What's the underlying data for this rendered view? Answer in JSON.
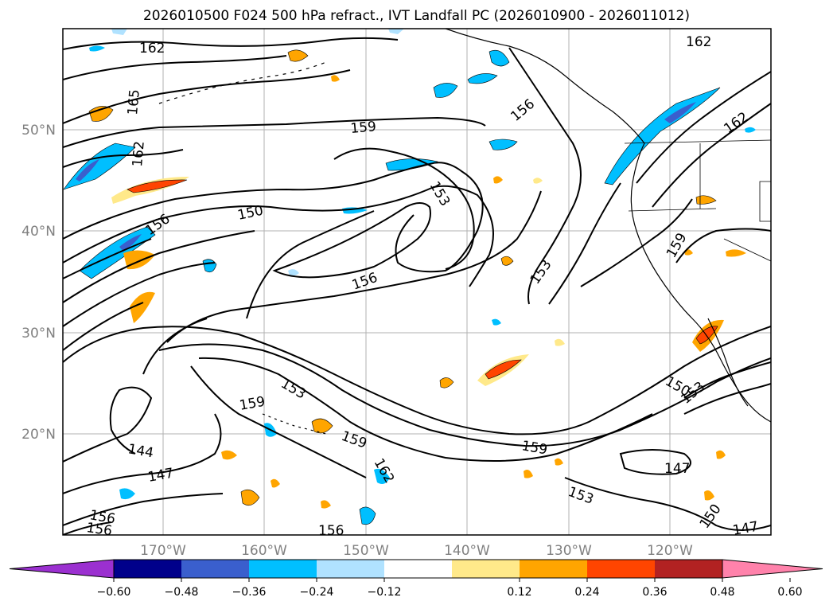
{
  "title": "2026010500 F024 500 hPa refract., IVT Landfall PC (2026010900 - 2026011012)",
  "latitude_labels": [
    "50°N",
    "40°N",
    "30°N",
    "20°N"
  ],
  "longitude_labels": [
    "170°W",
    "160°W",
    "150°W",
    "140°W",
    "130°W",
    "120°W"
  ],
  "contour_labels": [
    "162",
    "165",
    "162",
    "159",
    "156",
    "162",
    "150",
    "153",
    "156",
    "156",
    "153",
    "159",
    "153",
    "159",
    "159",
    "150",
    "153",
    "159",
    "144",
    "147",
    "162",
    "153",
    "156",
    "147",
    "150",
    "156",
    "147",
    "162",
    "156"
  ],
  "colorbar": {
    "ticks": [
      "−0.60",
      "−0.48",
      "−0.36",
      "−0.24",
      "−0.12",
      "0.12",
      "0.24",
      "0.36",
      "0.48",
      "0.60"
    ],
    "colors": [
      "#9b30d0",
      "#00008b",
      "#3a5fcd",
      "#00bfff",
      "#b0e2ff",
      "#ffffff",
      "#ffe98a",
      "#ffa500",
      "#ff4500",
      "#b22222",
      "#ff82ab"
    ]
  },
  "colors": {
    "frame": "#000000",
    "grid": "#b0b0b0",
    "axis_text": "#808080"
  }
}
